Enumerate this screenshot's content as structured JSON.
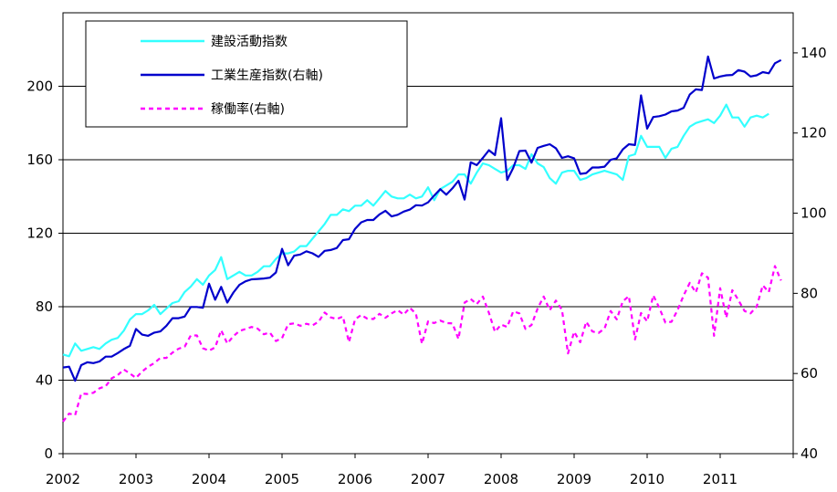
{
  "chart_data": {
    "type": "line",
    "title": "",
    "x_labels": [
      "2002",
      "2003",
      "2004",
      "2005",
      "2006",
      "2007",
      "2008",
      "2009",
      "2010",
      "2011"
    ],
    "x_range": [
      2002,
      2012
    ],
    "y_left": {
      "min": 0,
      "max": 240,
      "ticks": [
        0,
        40,
        80,
        120,
        160,
        200
      ]
    },
    "y_right": {
      "min": 40,
      "max": 150,
      "ticks": [
        40,
        60,
        80,
        100,
        120,
        140
      ]
    },
    "grid": "horizontal",
    "legend_position": "top-left",
    "series": [
      {
        "name": "建設活動指数",
        "axis": "left",
        "color": "#33FFFF",
        "dash": false,
        "start": 2002.0,
        "step": 0.0833333,
        "values": [
          54,
          53,
          60,
          56,
          57,
          58,
          57,
          60,
          62,
          63,
          67,
          73,
          76,
          76,
          78,
          81,
          76,
          79,
          82,
          83,
          88,
          91,
          95,
          92,
          97,
          100,
          107,
          95,
          97,
          99,
          97,
          97,
          99,
          102,
          102,
          106,
          109,
          109,
          110,
          113,
          113,
          117,
          121,
          125,
          130,
          130,
          133,
          132,
          135,
          135,
          138,
          135,
          139,
          143,
          140,
          139,
          139,
          141,
          139,
          140,
          145,
          138,
          144,
          146,
          148,
          152,
          152,
          147,
          153,
          158,
          157,
          155,
          153,
          154,
          157,
          157,
          155,
          163,
          158,
          156,
          150,
          147,
          153,
          154,
          154,
          149,
          150,
          152,
          153,
          154,
          153,
          152,
          149,
          162,
          163,
          173,
          167,
          167,
          167,
          161,
          166,
          167,
          173,
          178,
          180,
          181,
          182,
          180,
          184,
          190,
          183,
          183,
          178,
          183,
          184,
          183,
          185
        ]
      },
      {
        "name": "工業生産指数(右軸)",
        "axis": "right",
        "color": "#0000CC",
        "dash": false,
        "start": 2002.0,
        "step": 0.0833333,
        "values": [
          61.5,
          61.7,
          58.2,
          62.1,
          62.8,
          62.6,
          63.0,
          64.2,
          64.2,
          65.1,
          66.1,
          66.9,
          71.1,
          69.7,
          69.4,
          70.2,
          70.5,
          71.9,
          73.8,
          73.8,
          74.2,
          76.6,
          76.6,
          76.4,
          82.4,
          78.4,
          81.6,
          77.7,
          80.2,
          82.1,
          83.0,
          83.5,
          83.6,
          83.7,
          83.9,
          85.2,
          91.1,
          87.0,
          89.4,
          89.7,
          90.5,
          90.0,
          89.1,
          90.6,
          90.8,
          91.3,
          93.3,
          93.5,
          96.1,
          97.7,
          98.3,
          98.3,
          99.7,
          100.6,
          99.2,
          99.6,
          100.4,
          100.9,
          102.0,
          101.9,
          102.7,
          104.4,
          106.0,
          104.6,
          106.2,
          108.1,
          103.4,
          112.7,
          112.0,
          113.8,
          115.7,
          114.5,
          123.7,
          108.3,
          111.3,
          115.5,
          115.6,
          112.6,
          116.3,
          116.8,
          117.2,
          116.2,
          113.8,
          114.2,
          113.7,
          109.8,
          110.0,
          111.4,
          111.4,
          111.6,
          113.3,
          113.7,
          115.9,
          117.2,
          117.0,
          129.4,
          121.1,
          124.0,
          124.2,
          124.6,
          125.4,
          125.6,
          126.3,
          129.6,
          130.9,
          130.7,
          139.1,
          133.6,
          134.1,
          134.4,
          134.5,
          135.7,
          135.3,
          134.1,
          134.4,
          135.2,
          134.9,
          137.4,
          138.2
        ]
      },
      {
        "name": "稼働率(右軸)",
        "axis": "right",
        "color": "#FF00FF",
        "dash": true,
        "start": 2002.0,
        "step": 0.0833333,
        "values": [
          48.0,
          50.0,
          49.6,
          55.0,
          54.9,
          55.2,
          56.3,
          56.8,
          58.8,
          59.6,
          61.0,
          60.0,
          58.9,
          60.5,
          61.7,
          62.6,
          63.9,
          63.9,
          65.2,
          66.2,
          66.7,
          69.5,
          69.5,
          66.3,
          65.7,
          66.5,
          70.8,
          67.5,
          69.3,
          70.6,
          71.1,
          71.6,
          71.2,
          69.8,
          70.2,
          68.1,
          68.8,
          72.3,
          72.5,
          71.9,
          72.4,
          72.0,
          72.9,
          75.2,
          74.0,
          73.6,
          74.2,
          67.8,
          73.5,
          74.6,
          73.7,
          73.6,
          74.9,
          73.9,
          75.0,
          75.8,
          74.7,
          76.4,
          74.9,
          67.4,
          73.0,
          72.6,
          73.2,
          72.6,
          72.5,
          68.6,
          77.7,
          78.6,
          77.3,
          79.2,
          75.1,
          70.4,
          72.2,
          71.6,
          75.5,
          75.0,
          71.1,
          72.1,
          76.2,
          79.2,
          75.8,
          78.2,
          75.9,
          65.0,
          70.4,
          67.8,
          72.9,
          70.5,
          70.1,
          71.2,
          75.6,
          73.5,
          78.0,
          79.3,
          68.5,
          75.1,
          73.0,
          79.5,
          76.4,
          72.7,
          72.9,
          75.8,
          79.5,
          82.6,
          80.2,
          85.0,
          83.9,
          69.4,
          81.3,
          73.9,
          80.8,
          78.3,
          75.6,
          75.0,
          76.7,
          82.0,
          80.3,
          86.8,
          83.2
        ]
      }
    ]
  }
}
